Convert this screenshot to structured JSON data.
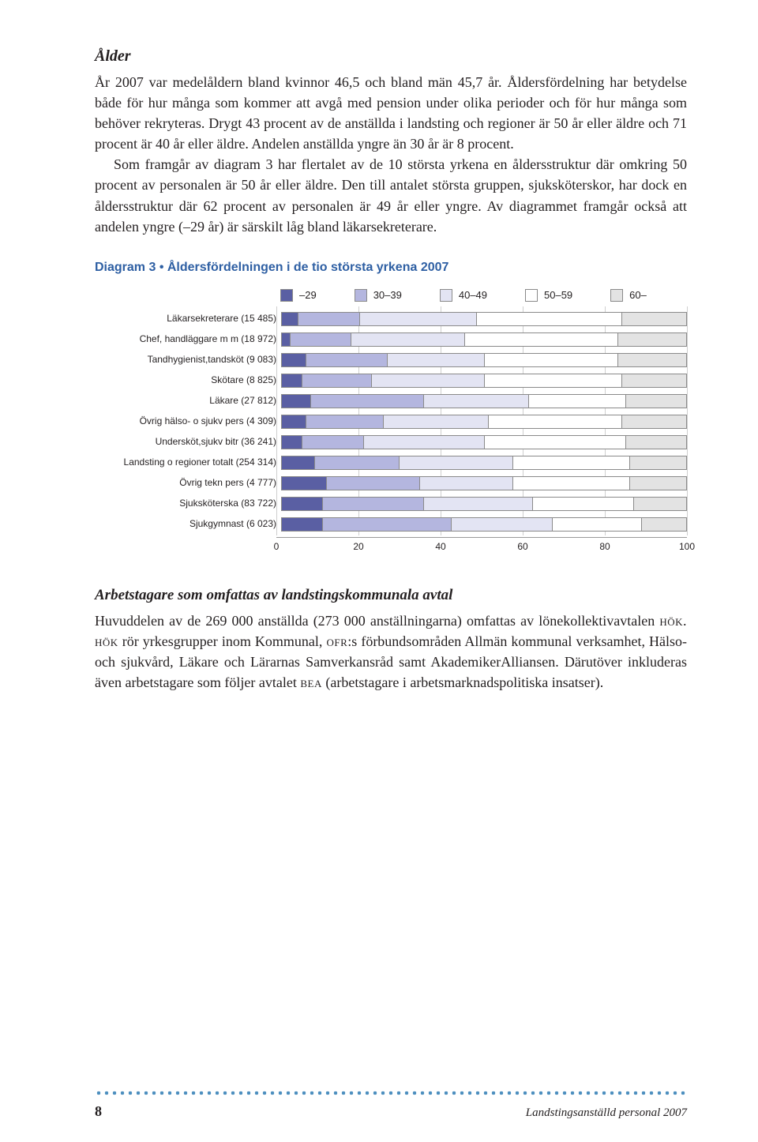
{
  "section_heading": "Ålder",
  "para1": "År 2007 var medelåldern bland kvinnor 46,5 och bland män 45,7 år. Åldersfördelning har betydelse både för hur många som kommer att avgå med pension under olika perioder och för hur många som behöver rekryteras. Drygt 43 procent av de anställda i landsting och regioner är 50 år eller äldre och 71 procent är 40 år eller äldre. Andelen anställda yngre än 30 år är 8 procent.",
  "para2": "Som framgår av diagram 3 har flertalet av de 10 största yrkena en åldersstruktur där omkring 50 procent av personalen är 50 år eller äldre. Den till antalet största gruppen, sjuksköterskor, har dock en åldersstruktur där 62 procent av personalen är 49 år eller yngre. Av diagrammet framgår också att andelen yngre (–29 år) är särskilt låg bland läkarsekreterare.",
  "diagram_title": "Diagram 3 • Åldersfördelningen i de tio största yrkena 2007",
  "chart": {
    "type": "stacked-bar-horizontal",
    "legend_labels": [
      "–29",
      "30–39",
      "40–49",
      "50–59",
      "60–"
    ],
    "segment_colors": [
      "#5a5fa3",
      "#b4b6df",
      "#e3e4f3",
      "#ffffff",
      "#e3e3e3"
    ],
    "segment_border": "#8a8a8a",
    "grid_color": "#cfcfcf",
    "x_ticks": [
      0,
      20,
      40,
      60,
      80,
      100
    ],
    "xlim": [
      0,
      100
    ],
    "label_fontsize": 12,
    "rows": [
      {
        "label": "Läkarsekreterare (15 485)",
        "values": [
          4,
          15,
          29,
          36,
          16
        ]
      },
      {
        "label": "Chef, handläggare m m (18 972)",
        "values": [
          2,
          15,
          28,
          38,
          17
        ]
      },
      {
        "label": "Tandhygienist,tandsköt (9 083)",
        "values": [
          6,
          20,
          24,
          33,
          17
        ]
      },
      {
        "label": "Skötare (8 825)",
        "values": [
          5,
          17,
          28,
          34,
          16
        ]
      },
      {
        "label": "Läkare (27 812)",
        "values": [
          7,
          28,
          26,
          24,
          15
        ]
      },
      {
        "label": "Övrig hälso- o sjukv pers (4 309)",
        "values": [
          6,
          19,
          26,
          33,
          16
        ]
      },
      {
        "label": "Undersköt,sjukv bitr (36 241)",
        "values": [
          5,
          15,
          30,
          35,
          15
        ]
      },
      {
        "label": "Landsting o regioner totalt (254 314)",
        "values": [
          8,
          21,
          28,
          29,
          14
        ]
      },
      {
        "label": "Övrig tekn pers (4 777)",
        "values": [
          11,
          23,
          23,
          29,
          14
        ]
      },
      {
        "label": "Sjuksköterska (83 722)",
        "values": [
          10,
          25,
          27,
          25,
          13
        ]
      },
      {
        "label": "Sjukgymnast (6 023)",
        "values": [
          10,
          32,
          25,
          22,
          11
        ]
      }
    ]
  },
  "sub_heading": "Arbetstagare som omfattas av landstingskommunala avtal",
  "para3_pre": "Huvuddelen av de 269 000 anställda (273 000 anställningarna) omfattas av lönekollektivavtalen ",
  "hok1": "hök. hök",
  "para3_mid": " rör yrkesgrupper inom Kommunal, ",
  "ofr": "ofr",
  "para3_post": ":s förbundsområden Allmän kommunal verksamhet, Hälso- och sjukvård, Läkare och Lärarnas Samverkansråd samt AkademikerAlliansen. Därutöver inkluderas även arbetstagare som följer avtalet ",
  "bea": "bea",
  "para3_end": " (arbetstagare i arbetsmarknadspolitiska insatser).",
  "footer": {
    "page": "8",
    "title": "Landstingsanställd personal 2007"
  }
}
